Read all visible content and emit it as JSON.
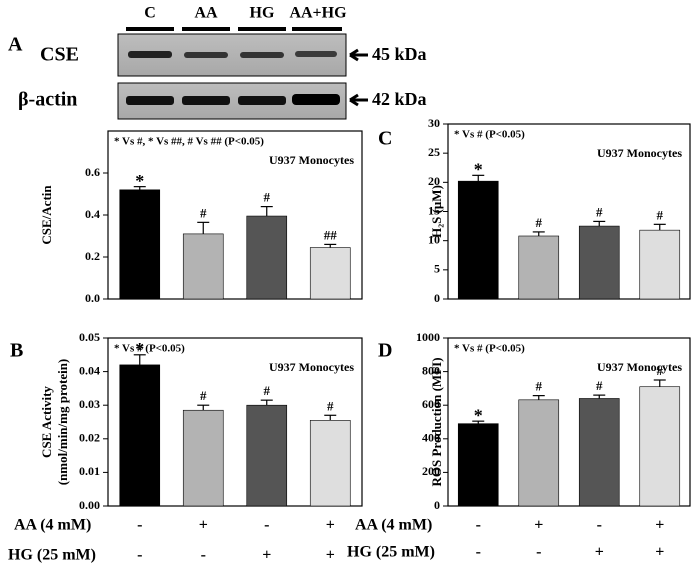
{
  "blot": {
    "panel": "A",
    "lanes": [
      "C",
      "AA",
      "HG",
      "AA+HG"
    ],
    "rows": [
      "CSE",
      "β-actin"
    ],
    "sizes": [
      "45 kDa",
      "42 kDa"
    ]
  },
  "treatments": {
    "rows": [
      {
        "label": "AA (4 mM)",
        "signs": [
          "-",
          "+",
          "-",
          "+"
        ]
      },
      {
        "label": "HG (25 mM)",
        "signs": [
          "-",
          "-",
          "+",
          "+"
        ]
      }
    ]
  },
  "chart_data": [
    {
      "type": "bar",
      "y_label": "CSE/Actin",
      "note": "* Vs #, * Vs ##, # Vs ## (P<0.05)",
      "cell": "U937 Monocytes",
      "values": [
        0.52,
        0.31,
        0.395,
        0.245
      ],
      "errors": [
        0.015,
        0.055,
        0.045,
        0.015
      ],
      "annotations": [
        "*",
        "#",
        "#",
        "##"
      ],
      "colors": [
        "#000000",
        "#b3b3b3",
        "#555555",
        "#dedede"
      ],
      "ylim": [
        0,
        0.8
      ],
      "yticks": [
        {
          "value": 0,
          "label": "0.0"
        },
        0.2,
        0.4,
        0.6
      ]
    },
    {
      "type": "bar",
      "panel": "C",
      "y_label": "H₂S (μM)",
      "note": "* Vs # (P<0.05)",
      "cell": "U937 Monocytes",
      "values": [
        20.2,
        10.8,
        12.5,
        11.8
      ],
      "errors": [
        1.0,
        0.7,
        0.8,
        1.0
      ],
      "annotations": [
        "*",
        "#",
        "#",
        "#"
      ],
      "colors": [
        "#000000",
        "#b3b3b3",
        "#555555",
        "#dedede"
      ],
      "ylim": [
        0,
        30
      ],
      "yticks": [
        0,
        5,
        10,
        15,
        20,
        25,
        30
      ]
    },
    {
      "type": "bar",
      "panel": "B",
      "y_label": [
        "CSE Activity",
        "(nmol/min/mg protein)"
      ],
      "note": "* Vs # (P<0.05)",
      "cell": "U937 Monocytes",
      "values": [
        0.042,
        0.0285,
        0.03,
        0.0255
      ],
      "errors": [
        0.003,
        0.0015,
        0.0015,
        0.0015
      ],
      "annotations": [
        "*",
        "#",
        "#",
        "#"
      ],
      "colors": [
        "#000000",
        "#b3b3b3",
        "#555555",
        "#dedede"
      ],
      "ylim": [
        0,
        0.05
      ],
      "yticks": [
        {
          "value": 0,
          "label": "0.00"
        },
        0.01,
        0.02,
        0.03,
        0.04,
        0.05
      ]
    },
    {
      "type": "bar",
      "panel": "D",
      "y_label": "ROS Production (MFI)",
      "note": "* Vs # (P<0.05)",
      "cell": "U937 Monocytes",
      "values": [
        490,
        632,
        640,
        710
      ],
      "errors": [
        15,
        25,
        20,
        40
      ],
      "annotations": [
        "*",
        "#",
        "#",
        "#"
      ],
      "colors": [
        "#000000",
        "#b3b3b3",
        "#555555",
        "#dedede"
      ],
      "ylim": [
        0,
        1000
      ],
      "yticks": [
        0,
        200,
        400,
        600,
        800,
        1000
      ]
    }
  ]
}
